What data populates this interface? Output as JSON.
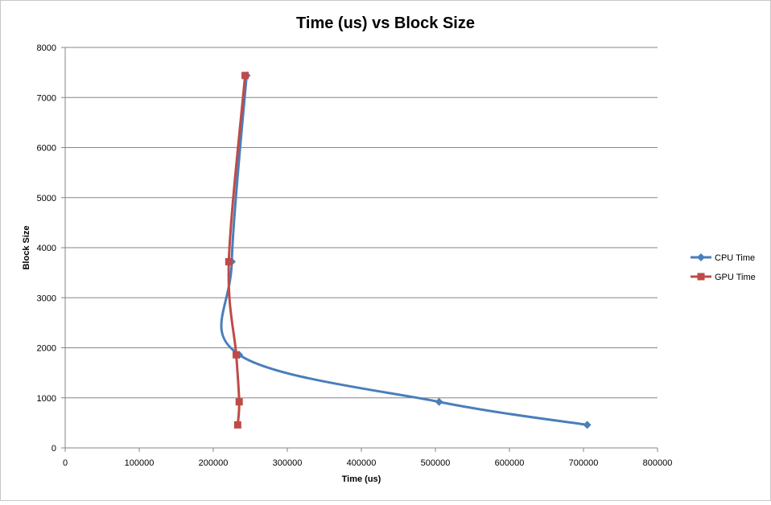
{
  "chart_data": {
    "type": "scatter",
    "title": "Time (us) vs Block Size",
    "xlabel": "Time (us)",
    "ylabel": "Block Size",
    "xlim": [
      0,
      800000
    ],
    "ylim": [
      0,
      8000
    ],
    "x_ticks": [
      0,
      100000,
      200000,
      300000,
      400000,
      500000,
      600000,
      700000,
      800000
    ],
    "y_ticks": [
      0,
      1000,
      2000,
      3000,
      4000,
      5000,
      6000,
      7000,
      8000
    ],
    "grid": "horizontal",
    "smoothed": true,
    "legend_position": "right",
    "series": [
      {
        "name": "CPU Time",
        "color": "#4a7ebb",
        "marker": "diamond",
        "points": [
          {
            "x": 705000,
            "y": 460
          },
          {
            "x": 505000,
            "y": 920
          },
          {
            "x": 235000,
            "y": 1860
          },
          {
            "x": 225000,
            "y": 3720
          },
          {
            "x": 245000,
            "y": 7440
          }
        ]
      },
      {
        "name": "GPU Time",
        "color": "#be4b48",
        "marker": "square",
        "points": [
          {
            "x": 233000,
            "y": 460
          },
          {
            "x": 235000,
            "y": 920
          },
          {
            "x": 231000,
            "y": 1860
          },
          {
            "x": 221000,
            "y": 3720
          },
          {
            "x": 243000,
            "y": 7440
          }
        ]
      }
    ]
  }
}
